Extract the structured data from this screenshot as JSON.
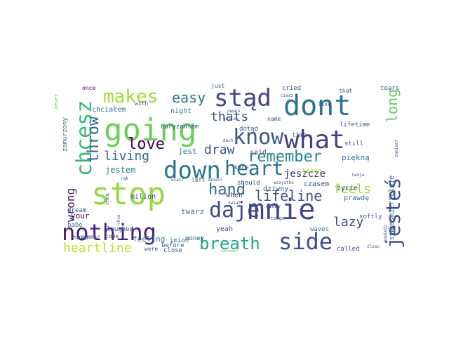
{
  "wordcloud": {
    "words": [
      {
        "text": "stop",
        "color": "#95d840"
      },
      {
        "text": "mnie",
        "color": "#3f4788"
      },
      {
        "text": "going",
        "color": "#6ccd5a"
      },
      {
        "text": "dont",
        "color": "#2d718e"
      },
      {
        "text": "down",
        "color": "#2a788e"
      },
      {
        "text": "nothing",
        "color": "#482173"
      },
      {
        "text": "what",
        "color": "#433e85"
      },
      {
        "text": "stąd",
        "color": "#414487"
      },
      {
        "text": "know",
        "color": "#38588c"
      },
      {
        "text": "daje",
        "color": "#3e4989"
      },
      {
        "text": "side",
        "color": "#3b528b"
      },
      {
        "text": "chcesz",
        "color": "#38b977"
      },
      {
        "text": "heart",
        "color": "#2c728e"
      },
      {
        "text": "jesteś",
        "color": "#3b528b"
      },
      {
        "text": "makes",
        "color": "#a0da39"
      },
      {
        "text": "breath",
        "color": "#21a685"
      },
      {
        "text": "throw",
        "color": "#31668e"
      },
      {
        "text": "remember",
        "color": "#24868e"
      },
      {
        "text": "love",
        "color": "#440154"
      },
      {
        "text": "hand",
        "color": "#31688e"
      },
      {
        "text": "lifeline",
        "color": "#3b528b"
      },
      {
        "text": "long",
        "color": "#5ec962"
      },
      {
        "text": "easy",
        "color": "#2a788e"
      },
      {
        "text": "heartline",
        "color": "#c2df23"
      },
      {
        "text": "feels",
        "color": "#9bd93c"
      },
      {
        "text": "lazy",
        "color": "#3e4a89"
      },
      {
        "text": "living",
        "color": "#30698e"
      },
      {
        "text": "thats",
        "color": "#3e4a89"
      },
      {
        "text": "draw",
        "color": "#3b518b"
      },
      {
        "text": "wrong",
        "color": "#48186a"
      },
      {
        "text": "jeszcze",
        "color": "#443a83"
      },
      {
        "text": "jestem",
        "color": "#26818e"
      },
      {
        "text": "jest",
        "color": "#2d708e"
      },
      {
        "text": "piękną",
        "color": "#287c8e"
      },
      {
        "text": "chciałem",
        "color": "#2e6f8e"
      },
      {
        "text": "milion",
        "color": "#3b528b"
      },
      {
        "text": "twarz",
        "color": "#2e6f8e"
      },
      {
        "text": "feeling",
        "color": "#2a788e"
      },
      {
        "text": "night",
        "color": "#2a788e"
      },
      {
        "text": "horyzontem",
        "color": "#3b528b"
      },
      {
        "text": "czasem",
        "color": "#3b528b"
      },
      {
        "text": "prawdę",
        "color": "#2e6f8e"
      },
      {
        "text": "życie",
        "color": "#3b528b"
      },
      {
        "text": "niesmiertelnie",
        "color": "#3b528b"
      },
      {
        "text": "said",
        "color": "#3b528b"
      },
      {
        "text": "when",
        "color": "#481a6c"
      },
      {
        "text": "more",
        "color": "#3b528b"
      },
      {
        "text": "dziwny",
        "color": "#3b528b"
      },
      {
        "text": "began",
        "color": "#a5db36"
      },
      {
        "text": "softly",
        "color": "#3b528b"
      },
      {
        "text": "laughed",
        "color": "#3b528b"
      },
      {
        "text": "money",
        "color": "#3b528b"
      },
      {
        "text": "yeah",
        "color": "#3b528b"
      },
      {
        "text": "waves",
        "color": "#2a788e"
      },
      {
        "text": "called",
        "color": "#3b528b"
      },
      {
        "text": "stai",
        "color": "#3b528b"
      },
      {
        "text": "close",
        "color": "#3b528b"
      },
      {
        "text": "imion",
        "color": "#2e6f8e"
      },
      {
        "text": "before",
        "color": "#3b528b"
      },
      {
        "text": "were",
        "color": "#3b528b"
      },
      {
        "text": "your",
        "color": "#440154"
      },
      {
        "text": "babe",
        "color": "#2e6f8e"
      },
      {
        "text": "dream",
        "color": "#3b528b"
      },
      {
        "text": "summer",
        "color": "#3b528b"
      },
      {
        "text": "have",
        "color": "#3b528b"
      },
      {
        "text": "come",
        "color": "#3b528b"
      },
      {
        "text": "once",
        "color": "#440154"
      },
      {
        "text": "with",
        "color": "#3b528b"
      },
      {
        "text": "just",
        "color": "#3b528b"
      },
      {
        "text": "cried",
        "color": "#3b528b"
      },
      {
        "text": "that",
        "color": "#3b528b"
      },
      {
        "text": "tears",
        "color": "#3b528b"
      },
      {
        "text": "like",
        "color": "#3b528b"
      },
      {
        "text": "name",
        "color": "#3b528b"
      },
      {
        "text": "time",
        "color": "#3b528b"
      },
      {
        "text": "still",
        "color": "#3b528b"
      },
      {
        "text": "lifetime",
        "color": "#3b528b"
      },
      {
        "text": "dotąd",
        "color": "#3b528b"
      },
      {
        "text": "should",
        "color": "#3b528b"
      },
      {
        "text": "left",
        "color": "#3b528b"
      },
      {
        "text": "chcę",
        "color": "#3b528b"
      },
      {
        "text": "zamurzony",
        "color": "#2e6f8e"
      },
      {
        "text": "never",
        "color": "#5ec962"
      },
      {
        "text": "ciesz",
        "color": "#3b528b"
      },
      {
        "text": "twoja",
        "color": "#3b528b"
      },
      {
        "text": "gdzies",
        "color": "#3b528b"
      },
      {
        "text": "czego",
        "color": "#3b528b"
      },
      {
        "text": "głowy",
        "color": "#3b528b"
      },
      {
        "text": "świat",
        "color": "#3b528b"
      },
      {
        "text": "śmierć",
        "color": "#3b528b"
      },
      {
        "text": "wszystko",
        "color": "#3b528b"
      },
      {
        "text": "dach",
        "color": "#3b528b"
      },
      {
        "text": "rąk",
        "color": "#3b528b"
      },
      {
        "text": "wiatr",
        "color": "#3b528b"
      },
      {
        "text": "chce",
        "color": "#3b528b"
      },
      {
        "text": "zlosc",
        "color": "#3b528b"
      },
      {
        "text": "odsuwasz",
        "color": "#5ec962"
      },
      {
        "text": "powiedz",
        "color": "#3b528b"
      },
      {
        "text": "pewno",
        "color": "#3b528b"
      },
      {
        "text": "zamiast",
        "color": "#3b528b"
      }
    ]
  }
}
